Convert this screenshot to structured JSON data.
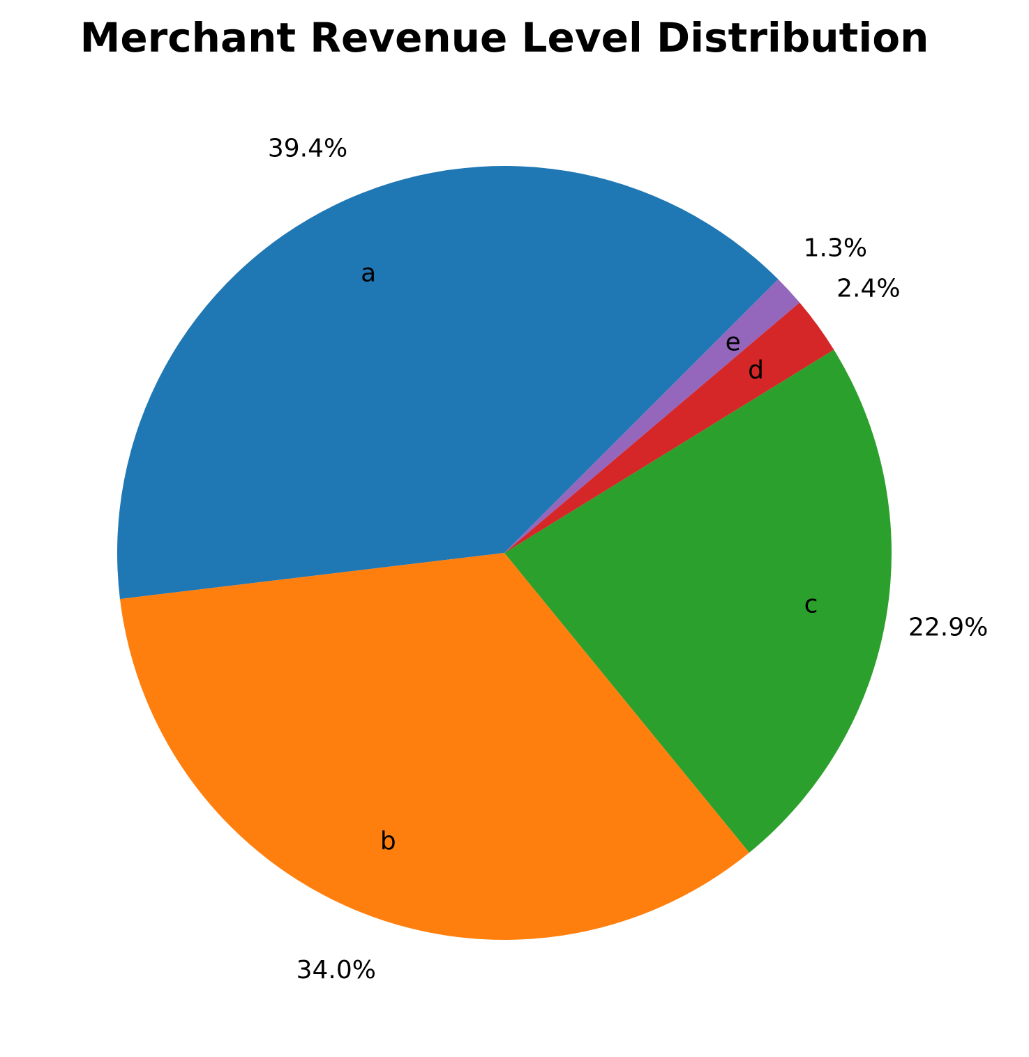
{
  "chart_data": {
    "type": "pie",
    "title": "Merchant Revenue Level Distribution",
    "categories": [
      "a",
      "b",
      "c",
      "d",
      "e"
    ],
    "values": [
      39.4,
      34.0,
      22.9,
      2.4,
      1.3
    ],
    "percent_labels": [
      "39.4%",
      "34.0%",
      "22.9%",
      "2.4%",
      "1.3%"
    ],
    "colors": [
      "#1f77b4",
      "#ff7f0e",
      "#2ca02c",
      "#d62728",
      "#9467bd"
    ],
    "start_angle_deg": 45,
    "direction": "counterclockwise",
    "legend": "none"
  }
}
